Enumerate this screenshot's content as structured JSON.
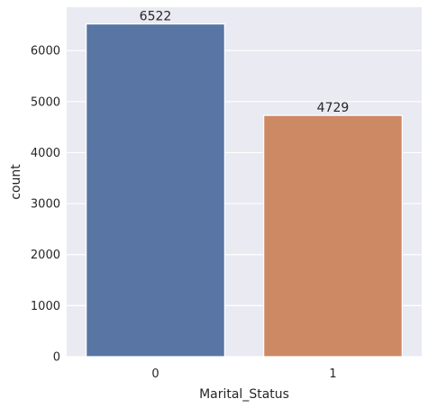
{
  "chart_data": {
    "type": "bar",
    "categories": [
      "0",
      "1"
    ],
    "values": [
      6522,
      4729
    ],
    "data_labels": [
      "6522",
      "4729"
    ],
    "xlabel": "Marital_Status",
    "ylabel": "count",
    "ylim": [
      0,
      6850
    ],
    "yticks": [
      0,
      1000,
      2000,
      3000,
      4000,
      5000,
      6000
    ],
    "grid": true,
    "colors": {
      "background": "#eaeaf2",
      "grid": "#ffffff",
      "bars": [
        "#5875a4",
        "#cc8963"
      ]
    }
  }
}
